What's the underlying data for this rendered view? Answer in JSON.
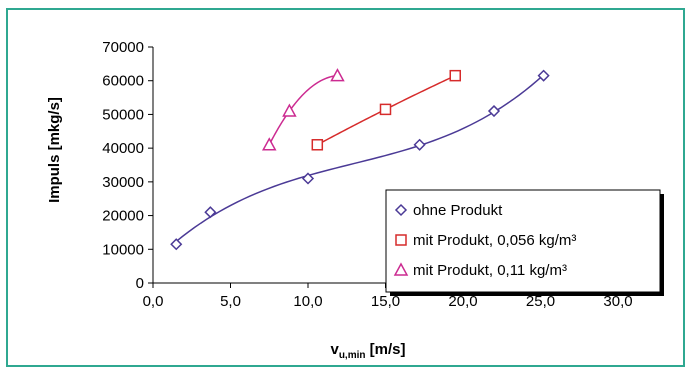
{
  "chart_data": {
    "type": "scatter",
    "xlabel": "v",
    "xlabel_sub": "u,min",
    "xlabel_unit": " [m/s]",
    "ylabel": "Impuls [mkg/s]",
    "xlim": [
      0,
      30
    ],
    "ylim": [
      0,
      70000
    ],
    "xticks": [
      0,
      5,
      10,
      15,
      20,
      25,
      30
    ],
    "xtick_labels": [
      "0,0",
      "5,0",
      "10,0",
      "15,0",
      "20,0",
      "25,0",
      "30,0"
    ],
    "yticks": [
      0,
      10000,
      20000,
      30000,
      40000,
      50000,
      60000,
      70000
    ],
    "ytick_labels": [
      "0",
      "10000",
      "20000",
      "30000",
      "40000",
      "50000",
      "60000",
      "70000"
    ],
    "grid": false,
    "legend_position": "bottom-right",
    "series": [
      {
        "name": "ohne Produkt",
        "marker": "diamond",
        "color": "#4b3a96",
        "trend": "cubic",
        "points": [
          [
            1.5,
            11500
          ],
          [
            3.7,
            21000
          ],
          [
            10.0,
            31000
          ],
          [
            17.2,
            41000
          ],
          [
            22.0,
            51000
          ],
          [
            25.2,
            61500
          ]
        ]
      },
      {
        "name": "mit Produkt, 0,056 kg/m³",
        "marker": "square",
        "color": "#d62b2b",
        "trend": "quadratic",
        "points": [
          [
            10.6,
            41000
          ],
          [
            15.0,
            51500
          ],
          [
            19.5,
            61500
          ]
        ]
      },
      {
        "name": "mit Produkt, 0,11 kg/m³",
        "marker": "triangle",
        "color": "#cc2b91",
        "trend": "quadratic",
        "points": [
          [
            7.5,
            41000
          ],
          [
            8.8,
            51000
          ],
          [
            11.9,
            61500
          ]
        ]
      }
    ]
  }
}
